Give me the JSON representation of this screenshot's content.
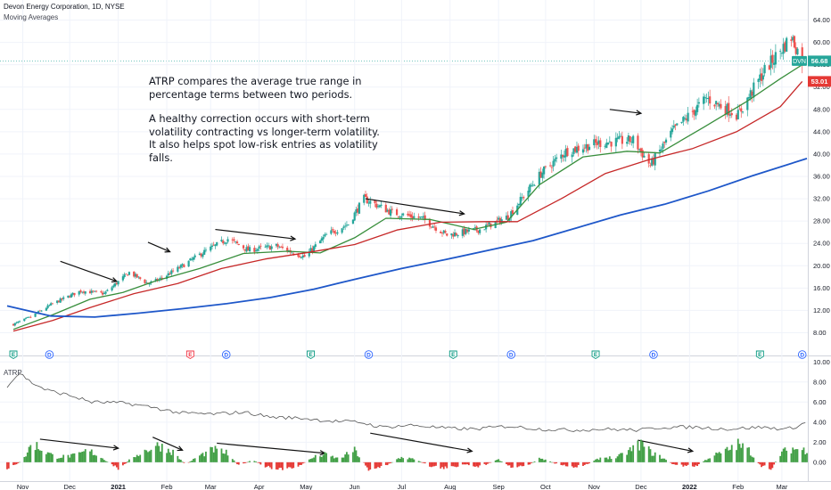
{
  "header": {
    "title": "Devon Energy Corporation, 1D, NYSE",
    "indicator": "Moving Averages"
  },
  "annotation": {
    "paragraph1": "ATRP compares the average true range in percentage terms between two periods.",
    "paragraph2": "A healthy correction occurs with short-term volatility contracting vs longer-term volatility. It also helps spot low-risk entries as volatility falls."
  },
  "price_labels": {
    "ticker": "DVN",
    "last": "56.68",
    "ma": "53.01",
    "ticker_color": "#26a69a",
    "ma_color": "#e53935"
  },
  "lower_pane": {
    "title": "ATRP"
  },
  "colors": {
    "up": "#26a69a",
    "down": "#ef5350",
    "ma_short": "#388e3c",
    "ma_mid": "#c62828",
    "ma_long": "#1e57c9",
    "atrp_line": "#555555",
    "hist_up": "#43a047",
    "hist_down": "#e53935",
    "arrow": "#111111"
  },
  "chart_data": [
    {
      "type": "candlestick",
      "title": "Devon Energy Corporation, 1D, NYSE",
      "y_ticks": [
        "64.00",
        "60.00",
        "56.00",
        "52.00",
        "48.00",
        "44.00",
        "40.00",
        "36.00",
        "32.00",
        "28.00",
        "24.00",
        "20.00",
        "16.00",
        "12.00",
        "8.00"
      ],
      "ylim": [
        6,
        66
      ],
      "x_ticks": [
        "Nov",
        "Dec",
        "2021",
        "Feb",
        "Mar",
        "Apr",
        "May",
        "Jun",
        "Jul",
        "Aug",
        "Sep",
        "Oct",
        "Nov",
        "Dec",
        "2022",
        "Feb",
        "Mar"
      ],
      "x_ticks_bold": [
        "2021",
        "2022"
      ],
      "xlim": [
        "2020-10-22",
        "2022-03-17"
      ],
      "close_path": [
        [
          "2020-10-26",
          9.5
        ],
        [
          "2020-11-06",
          10.8
        ],
        [
          "2020-11-20",
          13.2
        ],
        [
          "2020-12-08",
          15.5
        ],
        [
          "2020-12-23",
          15.0
        ],
        [
          "2021-01-08",
          18.8
        ],
        [
          "2021-01-20",
          16.8
        ],
        [
          "2021-01-27",
          17.5
        ],
        [
          "2021-02-10",
          19.8
        ],
        [
          "2021-02-25",
          22.5
        ],
        [
          "2021-03-12",
          24.8
        ],
        [
          "2021-03-25",
          22.8
        ],
        [
          "2021-04-12",
          23.5
        ],
        [
          "2021-04-30",
          21.6
        ],
        [
          "2021-05-14",
          25.5
        ],
        [
          "2021-05-28",
          27.5
        ],
        [
          "2021-06-07",
          32.0
        ],
        [
          "2021-06-25",
          29.5
        ],
        [
          "2021-07-14",
          28.5
        ],
        [
          "2021-07-30",
          25.5
        ],
        [
          "2021-08-20",
          26.5
        ],
        [
          "2021-09-07",
          28.8
        ],
        [
          "2021-09-28",
          36.5
        ],
        [
          "2021-10-14",
          40.5
        ],
        [
          "2021-11-04",
          42.0
        ],
        [
          "2021-11-26",
          42.5
        ],
        [
          "2021-12-07",
          38.0
        ],
        [
          "2021-12-21",
          44.0
        ],
        [
          "2022-01-12",
          50.0
        ],
        [
          "2022-02-01",
          47.0
        ],
        [
          "2022-02-18",
          55.0
        ],
        [
          "2022-03-07",
          61.0
        ],
        [
          "2022-03-14",
          56.68
        ]
      ],
      "series": [
        {
          "name": "",
          "color": "#388e3c",
          "role": "short moving average",
          "points": [
            [
              "2020-10-26",
              8.6
            ],
            [
              "2020-11-20",
              11.2
            ],
            [
              "2020-12-14",
              14.0
            ],
            [
              "2021-01-04",
              15.2
            ],
            [
              "2021-01-25",
              17.3
            ],
            [
              "2021-02-22",
              19.5
            ],
            [
              "2021-03-22",
              22.2
            ],
            [
              "2021-04-19",
              22.6
            ],
            [
              "2021-05-10",
              22.3
            ],
            [
              "2021-06-01",
              25.0
            ],
            [
              "2021-06-21",
              28.5
            ],
            [
              "2021-07-19",
              28.3
            ],
            [
              "2021-08-16",
              26.5
            ],
            [
              "2021-09-06",
              27.8
            ],
            [
              "2021-09-27",
              34.5
            ],
            [
              "2021-10-25",
              39.5
            ],
            [
              "2021-11-22",
              40.5
            ],
            [
              "2021-12-13",
              40.2
            ],
            [
              "2022-01-10",
              44.8
            ],
            [
              "2022-02-07",
              49.5
            ],
            [
              "2022-02-28",
              53.5
            ],
            [
              "2022-03-14",
              56.0
            ]
          ]
        },
        {
          "name": "",
          "color": "#c62828",
          "role": "medium moving average",
          "points": [
            [
              "2020-10-26",
              8.3
            ],
            [
              "2020-11-20",
              10.2
            ],
            [
              "2020-12-14",
              12.5
            ],
            [
              "2021-01-11",
              15.0
            ],
            [
              "2021-02-08",
              16.8
            ],
            [
              "2021-03-08",
              19.5
            ],
            [
              "2021-04-05",
              21.2
            ],
            [
              "2021-05-03",
              22.4
            ],
            [
              "2021-06-01",
              23.8
            ],
            [
              "2021-06-28",
              26.4
            ],
            [
              "2021-07-26",
              27.8
            ],
            [
              "2021-08-23",
              27.9
            ],
            [
              "2021-09-13",
              27.9
            ],
            [
              "2021-10-11",
              32.0
            ],
            [
              "2021-11-08",
              36.5
            ],
            [
              "2021-12-06",
              39.0
            ],
            [
              "2022-01-03",
              41.0
            ],
            [
              "2022-01-31",
              44.0
            ],
            [
              "2022-02-28",
              48.5
            ],
            [
              "2022-03-14",
              53.01
            ]
          ]
        },
        {
          "name": "",
          "color": "#1e57c9",
          "role": "long moving average",
          "points": [
            [
              "2020-10-22",
              12.8
            ],
            [
              "2020-11-19",
              11.0
            ],
            [
              "2020-12-17",
              10.8
            ],
            [
              "2021-01-14",
              11.5
            ],
            [
              "2021-02-11",
              12.3
            ],
            [
              "2021-03-11",
              13.2
            ],
            [
              "2021-04-08",
              14.3
            ],
            [
              "2021-05-06",
              15.8
            ],
            [
              "2021-06-03",
              17.7
            ],
            [
              "2021-07-01",
              19.5
            ],
            [
              "2021-07-29",
              21.1
            ],
            [
              "2021-08-26",
              22.8
            ],
            [
              "2021-09-23",
              24.5
            ],
            [
              "2021-10-21",
              26.8
            ],
            [
              "2021-11-18",
              29.1
            ],
            [
              "2021-12-16",
              31.0
            ],
            [
              "2022-01-13",
              33.4
            ],
            [
              "2022-02-10",
              36.1
            ],
            [
              "2022-03-17",
              39.2
            ]
          ]
        }
      ],
      "events": [
        {
          "date": "2020-10-26",
          "label": "E",
          "kind": "earnings-up"
        },
        {
          "date": "2020-11-18",
          "label": "D",
          "kind": "dividend"
        },
        {
          "date": "2021-02-16",
          "label": "E",
          "kind": "earnings-down"
        },
        {
          "date": "2021-03-11",
          "label": "D",
          "kind": "dividend"
        },
        {
          "date": "2021-05-04",
          "label": "E",
          "kind": "earnings-up"
        },
        {
          "date": "2021-06-10",
          "label": "D",
          "kind": "dividend"
        },
        {
          "date": "2021-08-03",
          "label": "E",
          "kind": "earnings-up"
        },
        {
          "date": "2021-09-09",
          "label": "D",
          "kind": "dividend"
        },
        {
          "date": "2021-11-02",
          "label": "E",
          "kind": "earnings-up"
        },
        {
          "date": "2021-12-09",
          "label": "D",
          "kind": "dividend"
        },
        {
          "date": "2022-02-15",
          "label": "E",
          "kind": "earnings-up"
        },
        {
          "date": "2022-03-14",
          "label": "D",
          "kind": "dividend"
        }
      ],
      "trend_arrows": [
        [
          [
            "2020-11-25",
            20.8
          ],
          [
            "2020-12-31",
            17.2
          ]
        ],
        [
          [
            "2021-01-20",
            24.2
          ],
          [
            "2021-02-03",
            22.5
          ]
        ],
        [
          [
            "2021-03-04",
            26.5
          ],
          [
            "2021-04-24",
            24.8
          ]
        ],
        [
          [
            "2021-06-08",
            32.0
          ],
          [
            "2021-08-10",
            29.3
          ]
        ],
        [
          [
            "2021-11-11",
            48.0
          ],
          [
            "2021-12-01",
            47.3
          ]
        ]
      ]
    },
    {
      "type": "line+histogram",
      "title": "ATRP",
      "y_ticks": [
        "10.00",
        "8.00",
        "6.00",
        "4.00",
        "2.00",
        "0.00"
      ],
      "ylim": [
        -1.7,
        10.2
      ],
      "atrp_line": [
        [
          "2020-10-22",
          7.6
        ],
        [
          "2020-10-30",
          8.9
        ],
        [
          "2020-11-06",
          8.0
        ],
        [
          "2020-11-16",
          7.2
        ],
        [
          "2020-11-30",
          6.7
        ],
        [
          "2020-12-15",
          6.0
        ],
        [
          "2021-01-05",
          5.9
        ],
        [
          "2021-01-22",
          5.5
        ],
        [
          "2021-02-10",
          4.9
        ],
        [
          "2021-03-03",
          4.8
        ],
        [
          "2021-03-22",
          5.0
        ],
        [
          "2021-04-09",
          4.5
        ],
        [
          "2021-04-28",
          4.4
        ],
        [
          "2021-05-17",
          4.1
        ],
        [
          "2021-06-04",
          4.0
        ],
        [
          "2021-06-18",
          3.5
        ],
        [
          "2021-07-08",
          3.7
        ],
        [
          "2021-07-28",
          3.4
        ],
        [
          "2021-08-16",
          3.3
        ],
        [
          "2021-09-07",
          3.6
        ],
        [
          "2021-09-28",
          3.3
        ],
        [
          "2021-10-18",
          3.2
        ],
        [
          "2021-11-08",
          3.3
        ],
        [
          "2021-11-29",
          3.2
        ],
        [
          "2021-12-15",
          3.5
        ],
        [
          "2022-01-05",
          3.5
        ],
        [
          "2022-01-26",
          3.3
        ],
        [
          "2022-02-15",
          3.5
        ],
        [
          "2022-03-04",
          3.3
        ],
        [
          "2022-03-11",
          3.6
        ],
        [
          "2022-03-17",
          4.0
        ]
      ],
      "histogram_profile": [
        [
          "2020-10-22",
          -0.7
        ],
        [
          "2020-10-28",
          -0.3
        ],
        [
          "2020-11-02",
          0.5
        ],
        [
          "2020-11-07",
          2.3
        ],
        [
          "2020-11-14",
          1.4
        ],
        [
          "2020-11-22",
          0.6
        ],
        [
          "2020-12-05",
          0.8
        ],
        [
          "2020-12-13",
          1.4
        ],
        [
          "2020-12-20",
          0.7
        ],
        [
          "2020-12-28",
          -0.3
        ],
        [
          "2021-01-02",
          -0.8
        ],
        [
          "2021-01-10",
          0.6
        ],
        [
          "2021-01-20",
          1.5
        ],
        [
          "2021-01-27",
          2.0
        ],
        [
          "2021-02-05",
          1.2
        ],
        [
          "2021-02-13",
          -0.3
        ],
        [
          "2021-02-20",
          0.6
        ],
        [
          "2021-03-03",
          1.5
        ],
        [
          "2021-03-11",
          1.1
        ],
        [
          "2021-03-19",
          -0.4
        ],
        [
          "2021-03-28",
          0.3
        ],
        [
          "2021-04-05",
          -0.6
        ],
        [
          "2021-04-20",
          -0.8
        ],
        [
          "2021-04-28",
          -0.3
        ],
        [
          "2021-05-06",
          0.6
        ],
        [
          "2021-05-13",
          0.9
        ],
        [
          "2021-05-22",
          0.4
        ],
        [
          "2021-06-01",
          1.4
        ],
        [
          "2021-06-10",
          -0.8
        ],
        [
          "2021-06-20",
          -0.5
        ],
        [
          "2021-07-01",
          0.6
        ],
        [
          "2021-07-10",
          0.3
        ],
        [
          "2021-07-20",
          -0.5
        ],
        [
          "2021-08-01",
          -0.7
        ],
        [
          "2021-08-10",
          -0.2
        ],
        [
          "2021-08-20",
          -0.5
        ],
        [
          "2021-09-01",
          0.3
        ],
        [
          "2021-09-10",
          -0.6
        ],
        [
          "2021-09-20",
          -0.3
        ],
        [
          "2021-09-28",
          0.5
        ],
        [
          "2021-10-08",
          -0.2
        ],
        [
          "2021-10-18",
          -0.6
        ],
        [
          "2021-10-28",
          -0.2
        ],
        [
          "2021-11-06",
          0.6
        ],
        [
          "2021-11-15",
          0.5
        ],
        [
          "2021-11-24",
          1.4
        ],
        [
          "2021-12-01",
          2.2
        ],
        [
          "2021-12-08",
          1.1
        ],
        [
          "2021-12-15",
          0.5
        ],
        [
          "2021-12-22",
          -0.3
        ],
        [
          "2022-01-05",
          -0.5
        ],
        [
          "2022-01-14",
          0.6
        ],
        [
          "2022-01-24",
          1.3
        ],
        [
          "2022-02-01",
          2.1
        ],
        [
          "2022-02-08",
          1.4
        ],
        [
          "2022-02-15",
          -0.4
        ],
        [
          "2022-02-22",
          -0.8
        ],
        [
          "2022-03-01",
          1.2
        ],
        [
          "2022-03-08",
          1.6
        ],
        [
          "2022-03-17",
          1.4
        ]
      ],
      "trend_arrows": [
        [
          [
            "2020-11-12",
            2.3
          ],
          [
            "2021-01-01",
            1.4
          ]
        ],
        [
          [
            "2021-01-23",
            2.5
          ],
          [
            "2021-02-11",
            1.2
          ]
        ],
        [
          [
            "2021-03-05",
            1.9
          ],
          [
            "2021-05-13",
            0.9
          ]
        ],
        [
          [
            "2021-06-11",
            2.9
          ],
          [
            "2021-08-15",
            1.1
          ]
        ],
        [
          [
            "2021-11-29",
            2.2
          ],
          [
            "2022-01-03",
            1.1
          ]
        ]
      ]
    }
  ]
}
